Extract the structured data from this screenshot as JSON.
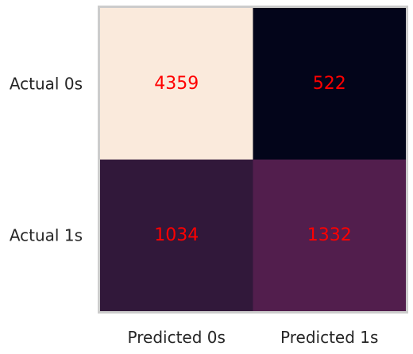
{
  "chart_data": {
    "type": "heatmap",
    "title": "",
    "xlabel": "",
    "ylabel": "",
    "x_categories": [
      "Predicted 0s",
      "Predicted 1s"
    ],
    "y_categories": [
      "Actual 0s",
      "Actual 1s"
    ],
    "values": [
      [
        4359,
        522
      ],
      [
        1034,
        1332
      ]
    ],
    "cell_colors": [
      [
        "#faeadc",
        "#03051a"
      ],
      [
        "#31183a",
        "#521e4d"
      ]
    ],
    "annotation_color": "#ff0000",
    "frame_color": "#cccccc",
    "grid": false,
    "legend": "none"
  }
}
